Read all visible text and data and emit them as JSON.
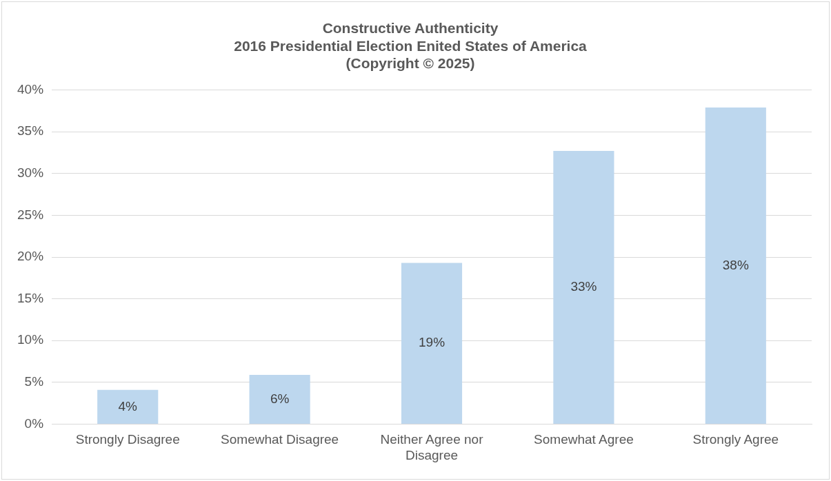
{
  "chart_data": {
    "type": "bar",
    "title": [
      "Constructive Authenticity",
      "2016 Presidential Election Enited States of America",
      "(Copyright © 2025)"
    ],
    "categories": [
      "Strongly Disagree",
      "Somewhat Disagree",
      "Neither Agree nor Disagree",
      "Somewhat Agree",
      "Strongly Agree"
    ],
    "values": [
      4.1,
      5.9,
      19.3,
      32.7,
      37.9
    ],
    "value_labels": [
      "4%",
      "6%",
      "19%",
      "33%",
      "38%"
    ],
    "color": "#bdd7ee",
    "ylim": [
      0,
      40
    ],
    "yticks": [
      {
        "value": 0,
        "label": "0%"
      },
      {
        "value": 5,
        "label": "5%"
      },
      {
        "value": 10,
        "label": "10%"
      },
      {
        "value": 15,
        "label": "15%"
      },
      {
        "value": 20,
        "label": "20%"
      },
      {
        "value": 25,
        "label": "25%"
      },
      {
        "value": 30,
        "label": "30%"
      },
      {
        "value": 35,
        "label": "35%"
      },
      {
        "value": 40,
        "label": "40%"
      }
    ],
    "grid": "y",
    "legend": false
  }
}
